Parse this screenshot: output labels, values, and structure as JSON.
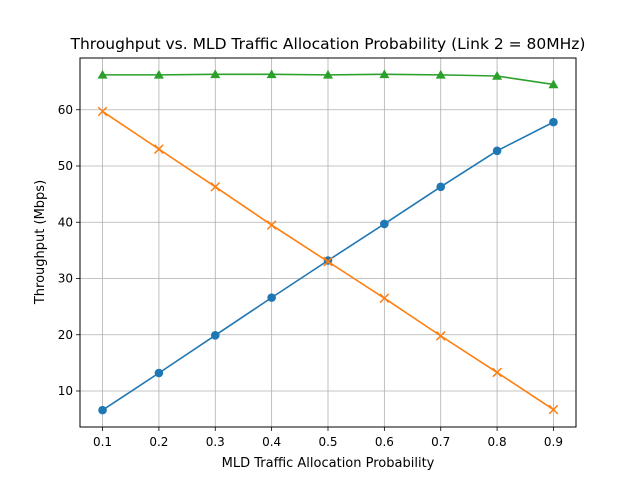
{
  "chart_data": {
    "type": "line",
    "title": "Throughput vs. MLD Traffic Allocation Probability (Link 2 = 80MHz)",
    "xlabel": "MLD Traffic Allocation Probability",
    "ylabel": "Throughput (Mbps)",
    "x": [
      0.1,
      0.2,
      0.3,
      0.4,
      0.5,
      0.6,
      0.7,
      0.8,
      0.9
    ],
    "x_ticks": [
      "0.1",
      "0.2",
      "0.3",
      "0.4",
      "0.5",
      "0.6",
      "0.7",
      "0.8",
      "0.9"
    ],
    "y_ticks": [
      "10",
      "20",
      "30",
      "40",
      "50",
      "60"
    ],
    "xlim": [
      0.06,
      0.94
    ],
    "ylim": [
      3.6,
      69.2
    ],
    "grid": true,
    "series": [
      {
        "color": "#1f77b4",
        "marker": "circle",
        "values": [
          6.6,
          13.2,
          19.9,
          26.6,
          33.2,
          39.7,
          46.3,
          52.7,
          57.8
        ]
      },
      {
        "color": "#ff7f0e",
        "marker": "x",
        "values": [
          59.7,
          53.0,
          46.3,
          39.5,
          33.0,
          26.5,
          19.8,
          13.3,
          6.7
        ]
      },
      {
        "color": "#2ca02c",
        "marker": "triangle",
        "values": [
          66.2,
          66.2,
          66.3,
          66.3,
          66.2,
          66.3,
          66.2,
          66.0,
          64.5
        ]
      }
    ]
  }
}
